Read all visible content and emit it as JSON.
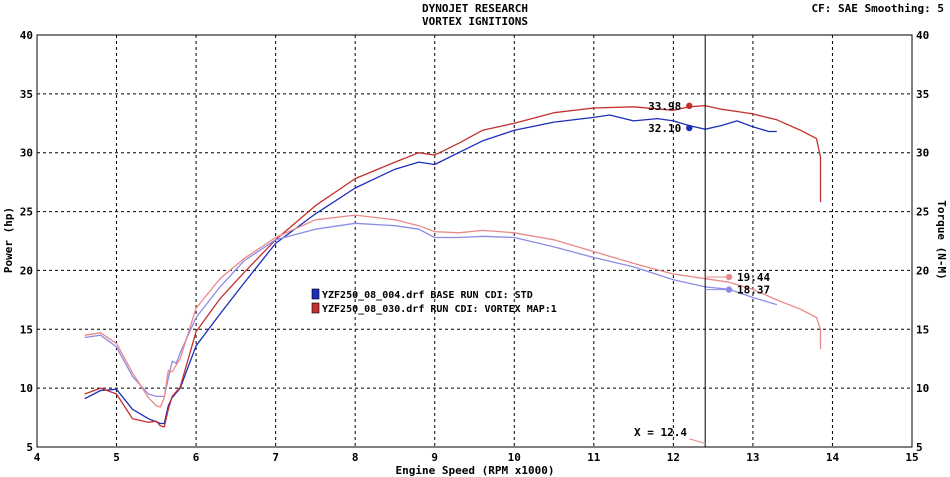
{
  "header": {
    "title_line1": "DYNOJET RESEARCH",
    "title_line2": "VORTEX IGNITIONS",
    "cf_info": "CF: SAE  Smoothing: 5"
  },
  "chart_data": {
    "type": "line",
    "xlabel": "Engine Speed (RPM x1000)",
    "ylabel_left": "Power (hp)",
    "ylabel_right": "Torque (N-M)",
    "xlim": [
      4,
      15
    ],
    "ylim": [
      5,
      40
    ],
    "xticks": [
      4,
      5,
      6,
      7,
      8,
      9,
      10,
      11,
      12,
      13,
      14,
      15
    ],
    "yticks": [
      5,
      10,
      15,
      20,
      25,
      30,
      35,
      40
    ],
    "grid": true,
    "legend_position": "center-left",
    "cursor": {
      "x": 12.4,
      "label": "X = 12.4"
    },
    "colors": {
      "base_power": "#1c2eb8",
      "base_torque": "#8c8ce6",
      "vortex_power": "#c43030",
      "vortex_torque": "#e88a8a",
      "axes": "#000000"
    },
    "legend": [
      {
        "label": "YZF250_08_004.drf BASE RUN CDI: STD",
        "color": "#1c2eb8"
      },
      {
        "label": "YZF250_08_030.drf RUN CDI: VORTEX  MAP:1",
        "color": "#c43030"
      }
    ],
    "series": [
      {
        "name": "YZF250_08_004.drf BASE RUN CDI: STD",
        "role": "base_power",
        "x": [
          4.6,
          4.8,
          5.0,
          5.2,
          5.4,
          5.55,
          5.6,
          5.65,
          5.7,
          5.8,
          6.0,
          6.3,
          6.6,
          7.0,
          7.5,
          8.0,
          8.5,
          8.8,
          9.0,
          9.3,
          9.6,
          10.0,
          10.5,
          11.0,
          11.2,
          11.5,
          11.8,
          12.0,
          12.2,
          12.4,
          12.6,
          12.8,
          13.0,
          13.2,
          13.3
        ],
        "values": [
          9.1,
          9.8,
          9.9,
          8.2,
          7.4,
          7.0,
          7.0,
          8.5,
          9.2,
          10.0,
          13.6,
          16.3,
          18.9,
          22.3,
          24.8,
          27.0,
          28.6,
          29.2,
          29.0,
          30.0,
          31.0,
          31.9,
          32.6,
          33.0,
          33.2,
          32.7,
          32.9,
          32.7,
          32.3,
          32.0,
          32.3,
          32.7,
          32.2,
          31.8,
          31.8
        ],
        "end_label": "32.10",
        "end_label_x": 12.2,
        "end_label_y": 32.1
      },
      {
        "name": "YZF250_08_030.drf RUN CDI: VORTEX  MAP:1",
        "role": "vortex_power",
        "x": [
          4.6,
          4.8,
          5.0,
          5.2,
          5.4,
          5.5,
          5.55,
          5.6,
          5.65,
          5.7,
          5.8,
          6.0,
          6.3,
          6.6,
          7.0,
          7.5,
          8.0,
          8.5,
          8.8,
          9.0,
          9.3,
          9.6,
          10.0,
          10.5,
          11.0,
          11.5,
          12.0,
          12.2,
          12.4,
          12.6,
          12.8,
          13.0,
          13.3,
          13.6,
          13.8,
          13.85,
          13.85
        ],
        "values": [
          9.5,
          10.0,
          9.5,
          7.4,
          7.1,
          7.2,
          6.8,
          6.7,
          8.2,
          9.3,
          10.1,
          14.8,
          17.6,
          19.8,
          22.6,
          25.5,
          27.8,
          29.2,
          30.0,
          29.8,
          30.8,
          31.9,
          32.5,
          33.4,
          33.8,
          33.9,
          33.6,
          33.9,
          34.0,
          33.7,
          33.5,
          33.3,
          32.8,
          31.9,
          31.2,
          29.6,
          25.8
        ],
        "end_label": "33.98",
        "end_label_x": 12.2,
        "end_label_y": 33.98
      },
      {
        "name": "Base torque",
        "role": "base_torque",
        "x": [
          4.6,
          4.8,
          5.0,
          5.2,
          5.4,
          5.5,
          5.6,
          5.7,
          5.75,
          5.8,
          6.0,
          6.3,
          6.6,
          7.0,
          7.5,
          8.0,
          8.5,
          8.8,
          9.0,
          9.3,
          9.6,
          10.0,
          10.5,
          11.0,
          11.5,
          12.0,
          12.4,
          12.7,
          13.0,
          13.3
        ],
        "values": [
          14.3,
          14.5,
          13.5,
          11.0,
          9.5,
          9.3,
          9.3,
          12.3,
          12.1,
          13.0,
          16.0,
          18.6,
          20.8,
          22.6,
          23.5,
          24.0,
          23.8,
          23.5,
          22.8,
          22.8,
          22.9,
          22.8,
          22.0,
          21.1,
          20.3,
          19.2,
          18.6,
          18.4,
          17.7,
          17.1
        ],
        "end_label": "18.37",
        "end_label_x": 12.7,
        "end_label_y": 18.37
      },
      {
        "name": "Vortex torque",
        "role": "vortex_torque",
        "x": [
          4.6,
          4.8,
          5.0,
          5.2,
          5.4,
          5.5,
          5.55,
          5.6,
          5.65,
          5.7,
          5.8,
          6.0,
          6.3,
          6.6,
          7.0,
          7.5,
          8.0,
          8.5,
          8.8,
          9.0,
          9.3,
          9.6,
          10.0,
          10.5,
          11.0,
          11.5,
          12.0,
          12.4,
          12.7,
          13.0,
          13.3,
          13.6,
          13.8,
          13.85,
          13.85
        ],
        "values": [
          14.5,
          14.7,
          13.8,
          11.3,
          9.2,
          8.5,
          8.4,
          9.2,
          11.5,
          11.4,
          12.5,
          16.8,
          19.3,
          21.0,
          22.8,
          24.3,
          24.7,
          24.3,
          23.8,
          23.3,
          23.2,
          23.4,
          23.2,
          22.6,
          21.6,
          20.6,
          19.7,
          19.3,
          19.0,
          18.4,
          17.5,
          16.7,
          16.0,
          15.0,
          13.3
        ],
        "end_label": "19.44",
        "end_label_x": 12.7,
        "end_label_y": 19.44
      }
    ]
  }
}
